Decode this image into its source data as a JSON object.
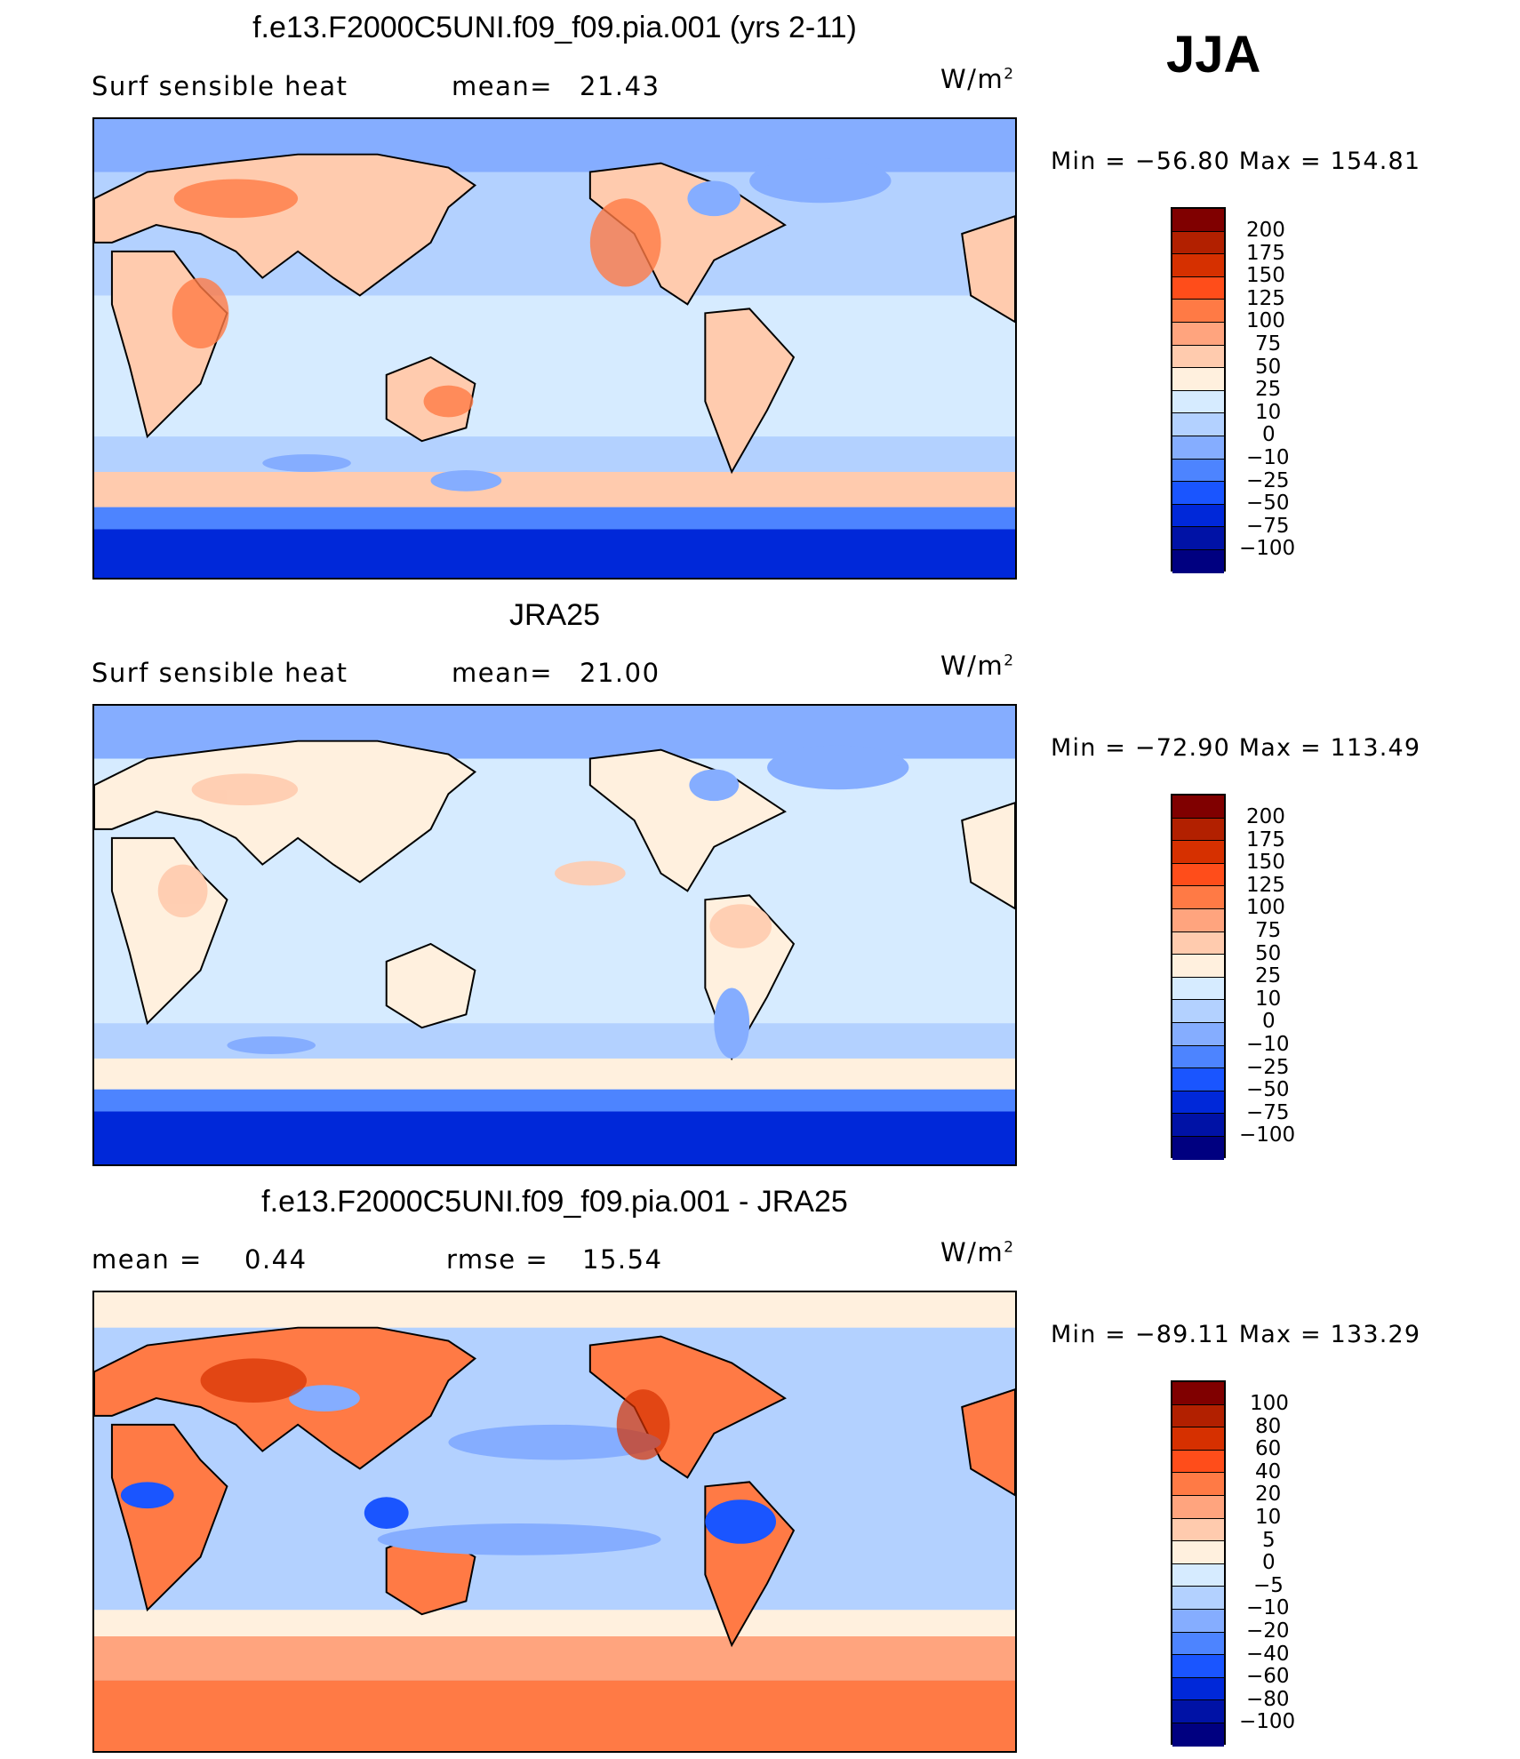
{
  "season": "JJA",
  "units_base": "W/m",
  "units_exp": "2",
  "panels": [
    {
      "title": "f.e13.F2000C5UNI.f09_f09.pia.001 (yrs 2-11)",
      "left_label": "Surf sensible heat",
      "mid_label": "mean=",
      "mid_value": "21.43",
      "minmax": "Min = −56.80 Max = 154.81",
      "legend": [
        "200",
        "175",
        "150",
        "125",
        "100",
        "75",
        "50",
        "25",
        "10",
        "0",
        "−10",
        "−25",
        "−50",
        "−75",
        "−100"
      ]
    },
    {
      "title": "JRA25",
      "left_label": "Surf sensible heat",
      "mid_label": "mean=",
      "mid_value": "21.00",
      "minmax": "Min = −72.90 Max = 113.49",
      "legend": [
        "200",
        "175",
        "150",
        "125",
        "100",
        "75",
        "50",
        "25",
        "10",
        "0",
        "−10",
        "−25",
        "−50",
        "−75",
        "−100"
      ]
    },
    {
      "title": "f.e13.F2000C5UNI.f09_f09.pia.001 - JRA25",
      "left_label": "mean =",
      "left_value": "0.44",
      "mid_label": "rmse =",
      "mid_value": "15.54",
      "minmax": "Min = −89.11 Max = 133.29",
      "legend": [
        "100",
        "80",
        "60",
        "40",
        "20",
        "10",
        "5",
        "0",
        "−5",
        "−10",
        "−20",
        "−40",
        "−60",
        "−80",
        "−100"
      ]
    }
  ],
  "colorbar": [
    "#800000",
    "#b22000",
    "#d63000",
    "#ff4d1a",
    "#ff7a45",
    "#ffa47e",
    "#ffcbae",
    "#fff0de",
    "#d6ebff",
    "#b3d1ff",
    "#85adff",
    "#4d84ff",
    "#1a55ff",
    "#0028d9",
    "#0012a6",
    "#000080"
  ]
}
